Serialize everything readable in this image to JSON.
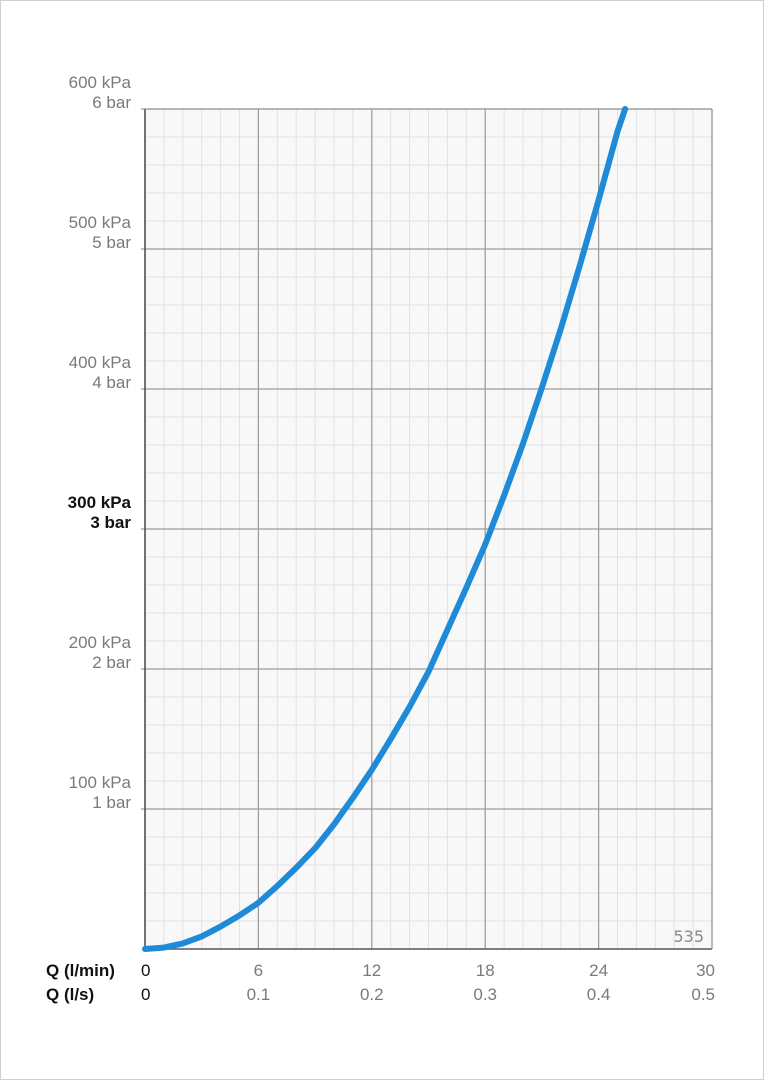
{
  "chart_data": {
    "type": "line",
    "code_label": "535",
    "y_axis": {
      "range_kpa": [
        0,
        600
      ],
      "ticks": [
        {
          "value": 100,
          "kpa": "100 kPa",
          "bar": "1 bar",
          "highlight": false
        },
        {
          "value": 200,
          "kpa": "200 kPa",
          "bar": "2 bar",
          "highlight": false
        },
        {
          "value": 300,
          "kpa": "300 kPa",
          "bar": "3 bar",
          "highlight": true
        },
        {
          "value": 400,
          "kpa": "400 kPa",
          "bar": "4 bar",
          "highlight": false
        },
        {
          "value": 500,
          "kpa": "500 kPa",
          "bar": "5 bar",
          "highlight": false
        },
        {
          "value": 600,
          "kpa": "600 kPa",
          "bar": "6 bar",
          "highlight": false
        }
      ]
    },
    "x_axis": {
      "range_lmin": [
        0,
        30
      ],
      "primary_label": "Q (l/min)",
      "secondary_label": "Q (l/s)",
      "ticks": [
        {
          "value": 0,
          "lmin": "0",
          "ls": "0"
        },
        {
          "value": 6,
          "lmin": "6",
          "ls": "0.1"
        },
        {
          "value": 12,
          "lmin": "12",
          "ls": "0.2"
        },
        {
          "value": 18,
          "lmin": "18",
          "ls": "0.3"
        },
        {
          "value": 24,
          "lmin": "24",
          "ls": "0.4"
        },
        {
          "value": 30,
          "lmin": "30",
          "ls": "0.5"
        }
      ]
    },
    "series": [
      {
        "color": "#1f8ad8",
        "x": [
          0,
          1,
          2,
          3,
          4,
          5,
          6,
          7,
          8,
          9,
          10,
          11,
          12,
          13,
          14,
          15,
          16,
          17,
          18,
          19,
          20,
          21,
          22,
          23,
          24,
          25,
          25.4
        ],
        "y": [
          0,
          1,
          4,
          9,
          16,
          24,
          33,
          45,
          58,
          72,
          89,
          108,
          128,
          150,
          173,
          198,
          228,
          258,
          289,
          324,
          361,
          401,
          443,
          488,
          535,
          584,
          600
        ]
      }
    ]
  }
}
